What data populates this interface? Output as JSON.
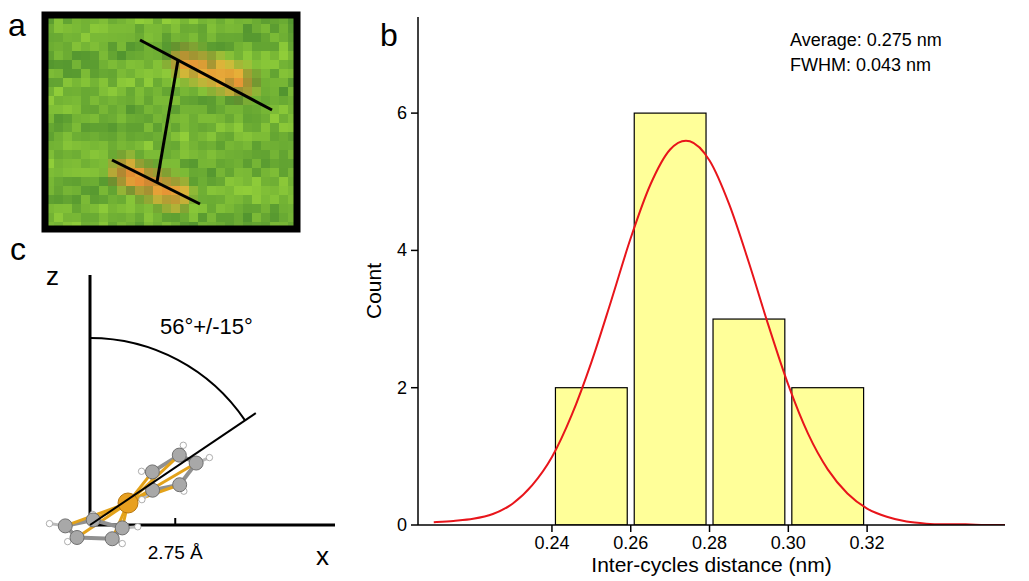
{
  "chart_data": {
    "type": "histogram",
    "panel_label": "b",
    "x_label": "Inter-cycles distance (nm)",
    "y_label": "Count",
    "bins": [
      0.24,
      0.26,
      0.28,
      0.3,
      0.32
    ],
    "values": [
      2,
      6,
      3,
      2
    ],
    "color": "#ffff99",
    "fit": {
      "type": "line",
      "color": "#e8151b",
      "x": [
        0.21,
        0.215,
        0.22,
        0.225,
        0.23,
        0.235,
        0.24,
        0.245,
        0.25,
        0.255,
        0.26,
        0.265,
        0.27,
        0.275,
        0.28,
        0.285,
        0.29,
        0.295,
        0.3,
        0.305,
        0.31,
        0.315,
        0.32,
        0.325,
        0.33,
        0.335,
        0.34,
        0.345,
        0.35,
        0.355
      ],
      "values": [
        0.04,
        0.06,
        0.09,
        0.16,
        0.31,
        0.58,
        0.99,
        1.6,
        2.37,
        3.26,
        4.18,
        4.96,
        5.47,
        5.59,
        5.31,
        4.67,
        3.82,
        2.9,
        2.04,
        1.33,
        0.81,
        0.46,
        0.24,
        0.12,
        0.05,
        0.02,
        0.01,
        0.01,
        0,
        0
      ]
    },
    "annotations": [
      "Average: 0.275 nm",
      "FWHM: 0.043 nm"
    ],
    "xlim": [
      0.206,
      0.355
    ],
    "ylim": [
      0,
      7.4
    ],
    "xticks": [
      0.24,
      0.26,
      0.28,
      {
        "value": 0.3,
        "label": "0.30"
      },
      0.32
    ],
    "yticks": [
      0,
      2,
      4,
      6
    ]
  },
  "panel_a": {
    "label": "a"
  },
  "panel_c": {
    "label": "c",
    "z_label": "z",
    "x_label": "x",
    "tilt_angle": {
      "value": 56,
      "label": "56°+/-15°"
    },
    "distance": {
      "value": 2.75,
      "label": "2.75 Å"
    }
  }
}
